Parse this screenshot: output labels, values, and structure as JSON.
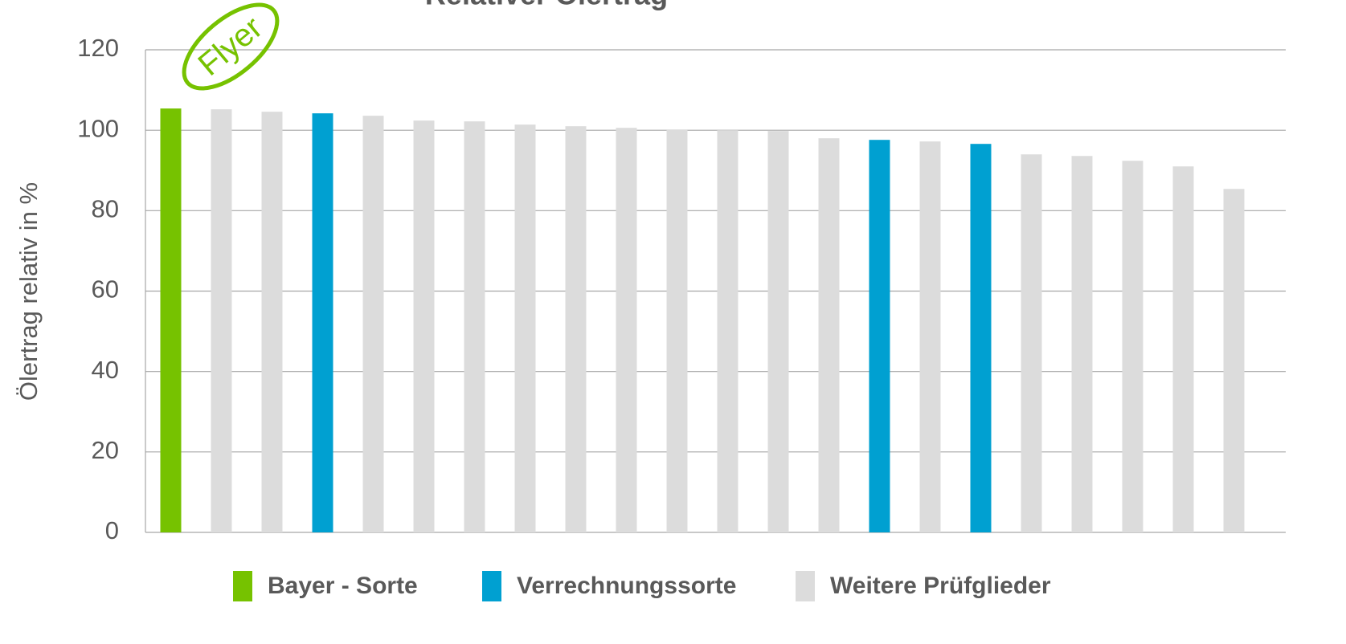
{
  "chart_data": {
    "type": "bar",
    "title": "Relativer Ölertrag",
    "y_label": "Ölertrag relativ in %",
    "annotation": "Flyer",
    "categories": [
      null,
      null,
      null,
      null,
      null,
      null,
      null,
      null,
      null,
      null,
      null,
      null,
      null,
      null,
      null,
      null,
      null,
      null,
      null,
      null,
      null,
      null
    ],
    "series": [
      {
        "name": "Bayer - Sorte",
        "color": "#76c200",
        "values": [
          105.4,
          null,
          null,
          null,
          null,
          null,
          null,
          null,
          null,
          null,
          null,
          null,
          null,
          null,
          null,
          null,
          null,
          null,
          null,
          null,
          null,
          null
        ]
      },
      {
        "name": "Verrechnungssorte",
        "color": "#00a0d1",
        "values": [
          null,
          null,
          null,
          104.2,
          null,
          null,
          null,
          null,
          null,
          null,
          null,
          null,
          null,
          null,
          97.6,
          null,
          96.6,
          null,
          null,
          null,
          null,
          null
        ]
      },
      {
        "name": "Weitere Prüfglieder",
        "color": "#dcdcdc",
        "values": [
          null,
          105.2,
          104.6,
          null,
          103.6,
          102.4,
          102.2,
          101.4,
          101.0,
          100.6,
          100.2,
          100.0,
          99.8,
          98.0,
          null,
          97.2,
          null,
          94.0,
          93.6,
          92.4,
          91.0,
          85.4
        ]
      }
    ],
    "ylim": [
      0,
      120
    ],
    "yticks": [
      0,
      20,
      40,
      60,
      80,
      100,
      120
    ],
    "grid": true,
    "legend": "bottom"
  }
}
